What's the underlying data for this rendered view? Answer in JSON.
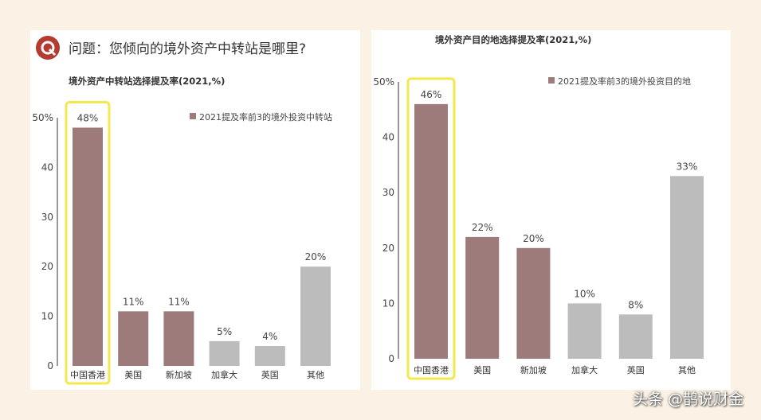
{
  "question": "问题：您倾向的境外资产中转站是哪里?",
  "watermark": "头条 @鹊说财金",
  "colors": {
    "highlight": "#9e7b7b",
    "other": "#bcbcbc",
    "frame": "#f3e84c",
    "logo": "#b53a30"
  },
  "chart_data": [
    {
      "type": "bar",
      "title": "境外资产中转站选择提及率(2021,%)",
      "legend": "2021提及率前3的境外投资中转站",
      "legend_position": "top-right",
      "categories": [
        "中国香港",
        "美国",
        "新加坡",
        "加拿大",
        "英国",
        "其他"
      ],
      "values": [
        48,
        11,
        11,
        5,
        4,
        20
      ],
      "data_labels": [
        "48%",
        "11%",
        "11%",
        "5%",
        "4%",
        "20%"
      ],
      "highlighted": [
        true,
        true,
        true,
        false,
        false,
        false
      ],
      "yticks": [
        "0",
        "10",
        "20",
        "30",
        "40",
        "50%"
      ],
      "ylim": [
        0,
        50
      ]
    },
    {
      "type": "bar",
      "title": "境外资产目的地选择提及率(2021,%)",
      "legend": "2021提及率前3的境外投资目的地",
      "legend_position": "top-right",
      "categories": [
        "中国香港",
        "美国",
        "新加坡",
        "加拿大",
        "英国",
        "其他"
      ],
      "values": [
        46,
        22,
        20,
        10,
        8,
        33
      ],
      "data_labels": [
        "46%",
        "22%",
        "20%",
        "10%",
        "8%",
        "33%"
      ],
      "highlighted": [
        true,
        true,
        true,
        false,
        false,
        false
      ],
      "yticks": [
        "0",
        "10",
        "20",
        "30",
        "40",
        "50%"
      ],
      "ylim": [
        0,
        50
      ]
    }
  ]
}
